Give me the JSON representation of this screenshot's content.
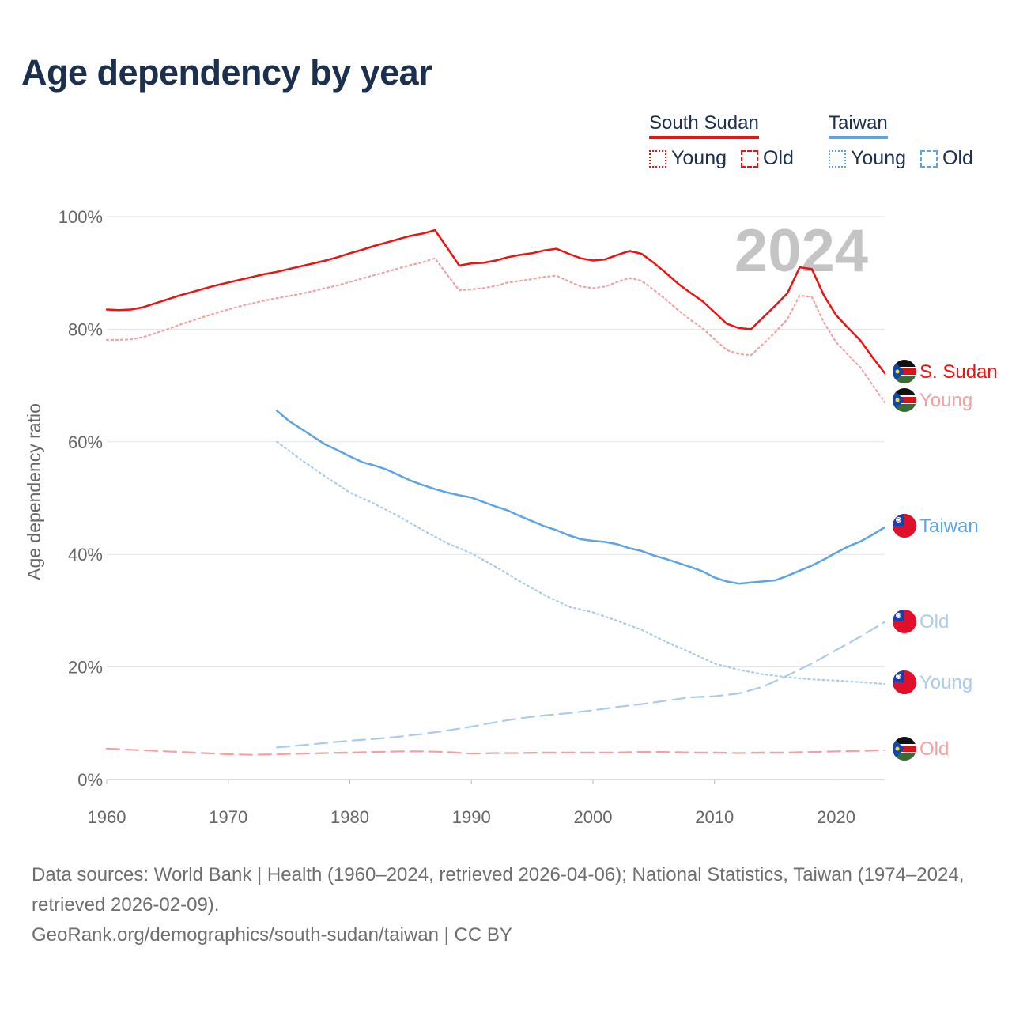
{
  "title": "Age dependency by year",
  "legend": {
    "south_sudan": {
      "label": "South Sudan",
      "young": "Young",
      "old": "Old",
      "color": "#ee1111",
      "light_color": "#f4a0a0"
    },
    "taiwan": {
      "label": "Taiwan",
      "young": "Young",
      "old": "Old",
      "color": "#5ca4e4",
      "light_color": "#a9cbee"
    }
  },
  "year_watermark": "2024",
  "footer": {
    "sources": "Data sources: World Bank | Health (1960–2024, retrieved 2026-04-06); National Statistics, Taiwan (1974–2024, retrieved 2026-02-09).",
    "attribution": "GeoRank.org/demographics/south-sudan/taiwan | CC BY"
  },
  "chart_data": {
    "type": "line",
    "title": "Age dependency by year",
    "xlabel": "",
    "ylabel": "Age dependency ratio",
    "xlim": [
      1960,
      2024
    ],
    "ylim": [
      0,
      100
    ],
    "x_ticks": [
      1960,
      1970,
      1980,
      1990,
      2000,
      2010,
      2020
    ],
    "y_ticks": [
      0,
      20,
      40,
      60,
      80,
      100
    ],
    "y_tick_labels": [
      "0%",
      "20%",
      "40%",
      "60%",
      "80%",
      "100%"
    ],
    "grid": true,
    "series": [
      {
        "name": "South Sudan",
        "end_label": "S. Sudan",
        "color": "#ee1111",
        "style": "solid",
        "flag": "south-sudan",
        "x": [
          1960,
          1961,
          1962,
          1963,
          1964,
          1965,
          1966,
          1967,
          1968,
          1969,
          1970,
          1971,
          1972,
          1973,
          1974,
          1975,
          1976,
          1977,
          1978,
          1979,
          1980,
          1981,
          1982,
          1983,
          1984,
          1985,
          1986,
          1987,
          1988,
          1989,
          1990,
          1991,
          1992,
          1993,
          1994,
          1995,
          1996,
          1997,
          1998,
          1999,
          2000,
          2001,
          2002,
          2003,
          2004,
          2005,
          2006,
          2007,
          2008,
          2009,
          2010,
          2011,
          2012,
          2013,
          2014,
          2015,
          2016,
          2017,
          2018,
          2019,
          2020,
          2021,
          2022,
          2023,
          2024
        ],
        "values": [
          83.5,
          83.4,
          83.5,
          83.9,
          84.6,
          85.3,
          86.0,
          86.6,
          87.2,
          87.8,
          88.3,
          88.8,
          89.3,
          89.8,
          90.2,
          90.7,
          91.2,
          91.7,
          92.2,
          92.8,
          93.5,
          94.1,
          94.8,
          95.4,
          96.0,
          96.6,
          97.0,
          97.6,
          94.5,
          91.3,
          91.7,
          91.8,
          92.2,
          92.8,
          93.2,
          93.5,
          94.0,
          94.3,
          93.4,
          92.6,
          92.2,
          92.4,
          93.2,
          93.9,
          93.4,
          91.8,
          90.0,
          88.1,
          86.5,
          85.0,
          83.0,
          81.0,
          80.2,
          80.0,
          82.1,
          84.2,
          86.4,
          91.0,
          90.7,
          86.0,
          82.5,
          80.2,
          78.0,
          75.0,
          72.2
        ]
      },
      {
        "name": "South Sudan Young",
        "end_label": "Young",
        "color": "#f4a0a0",
        "style": "dotted",
        "flag": "south-sudan",
        "x": [
          1960,
          1961,
          1962,
          1963,
          1964,
          1965,
          1966,
          1967,
          1968,
          1969,
          1970,
          1971,
          1972,
          1973,
          1974,
          1975,
          1976,
          1977,
          1978,
          1979,
          1980,
          1981,
          1982,
          1983,
          1984,
          1985,
          1986,
          1987,
          1988,
          1989,
          1990,
          1991,
          1992,
          1993,
          1994,
          1995,
          1996,
          1997,
          1998,
          1999,
          2000,
          2001,
          2002,
          2003,
          2004,
          2005,
          2006,
          2007,
          2008,
          2009,
          2010,
          2011,
          2012,
          2013,
          2014,
          2015,
          2016,
          2017,
          2018,
          2019,
          2020,
          2021,
          2022,
          2023,
          2024
        ],
        "values": [
          78.1,
          78.1,
          78.2,
          78.6,
          79.3,
          80.0,
          80.8,
          81.5,
          82.2,
          82.9,
          83.5,
          84.1,
          84.6,
          85.1,
          85.5,
          85.9,
          86.3,
          86.8,
          87.3,
          87.8,
          88.4,
          89.0,
          89.6,
          90.2,
          90.8,
          91.4,
          91.9,
          92.6,
          89.7,
          86.9,
          87.1,
          87.3,
          87.7,
          88.3,
          88.6,
          88.9,
          89.3,
          89.5,
          88.5,
          87.6,
          87.3,
          87.6,
          88.4,
          89.1,
          88.6,
          87.0,
          85.3,
          83.4,
          81.7,
          80.2,
          78.2,
          76.3,
          75.6,
          75.4,
          77.4,
          79.5,
          81.8,
          86.0,
          85.7,
          81.2,
          77.7,
          75.4,
          73.2,
          70.1,
          67.0
        ]
      },
      {
        "name": "South Sudan Old",
        "end_label": "Old",
        "color": "#f4a0a0",
        "style": "dashed",
        "flag": "south-sudan",
        "x": [
          1960,
          1962,
          1964,
          1966,
          1968,
          1970,
          1972,
          1974,
          1976,
          1978,
          1980,
          1982,
          1984,
          1986,
          1988,
          1990,
          1992,
          1994,
          1996,
          1998,
          2000,
          2002,
          2004,
          2006,
          2008,
          2010,
          2012,
          2014,
          2016,
          2018,
          2020,
          2022,
          2024
        ],
        "values": [
          5.5,
          5.3,
          5.1,
          4.9,
          4.7,
          4.5,
          4.4,
          4.5,
          4.6,
          4.7,
          4.8,
          4.9,
          5.0,
          5.0,
          4.9,
          4.6,
          4.7,
          4.7,
          4.8,
          4.8,
          4.8,
          4.8,
          4.9,
          4.9,
          4.8,
          4.8,
          4.7,
          4.8,
          4.8,
          4.9,
          5.0,
          5.1,
          5.2
        ]
      },
      {
        "name": "Taiwan",
        "end_label": "Taiwan",
        "color": "#5ca4e4",
        "style": "solid",
        "flag": "taiwan",
        "x": [
          1974,
          1975,
          1976,
          1977,
          1978,
          1979,
          1980,
          1981,
          1982,
          1983,
          1984,
          1985,
          1986,
          1987,
          1988,
          1989,
          1990,
          1991,
          1992,
          1993,
          1994,
          1995,
          1996,
          1997,
          1998,
          1999,
          2000,
          2001,
          2002,
          2003,
          2004,
          2005,
          2006,
          2007,
          2008,
          2009,
          2010,
          2011,
          2012,
          2013,
          2014,
          2015,
          2016,
          2017,
          2018,
          2019,
          2020,
          2021,
          2022,
          2023,
          2024
        ],
        "values": [
          65.5,
          63.7,
          62.3,
          60.9,
          59.5,
          58.5,
          57.4,
          56.4,
          55.8,
          55.1,
          54.1,
          53.1,
          52.3,
          51.6,
          51.0,
          50.5,
          50.1,
          49.3,
          48.5,
          47.8,
          46.8,
          45.9,
          45.0,
          44.3,
          43.4,
          42.7,
          42.4,
          42.2,
          41.8,
          41.1,
          40.6,
          39.8,
          39.2,
          38.5,
          37.8,
          37.0,
          35.9,
          35.2,
          34.8,
          35.0,
          35.2,
          35.4,
          36.2,
          37.1,
          38.0,
          39.1,
          40.3,
          41.4,
          42.3,
          43.5,
          44.8
        ]
      },
      {
        "name": "Taiwan Young",
        "end_label": "Young",
        "color": "#a9cbee",
        "style": "dotted",
        "flag": "taiwan",
        "x": [
          1974,
          1976,
          1978,
          1980,
          1982,
          1984,
          1986,
          1988,
          1990,
          1992,
          1994,
          1996,
          1998,
          2000,
          2002,
          2004,
          2006,
          2008,
          2010,
          2012,
          2014,
          2016,
          2018,
          2020,
          2022,
          2024
        ],
        "values": [
          60.0,
          56.8,
          53.8,
          51.0,
          49.0,
          46.8,
          44.3,
          42.0,
          40.2,
          37.8,
          35.2,
          32.8,
          30.7,
          29.7,
          28.2,
          26.6,
          24.5,
          22.6,
          20.6,
          19.5,
          18.7,
          18.2,
          17.8,
          17.6,
          17.3,
          17.0
        ]
      },
      {
        "name": "Taiwan Old",
        "end_label": "Old",
        "color": "#a9cbee",
        "style": "dashed",
        "flag": "taiwan",
        "x": [
          1974,
          1976,
          1978,
          1980,
          1982,
          1984,
          1986,
          1988,
          1990,
          1992,
          1994,
          1996,
          1998,
          2000,
          2002,
          2004,
          2006,
          2008,
          2010,
          2012,
          2014,
          2016,
          2018,
          2020,
          2022,
          2024
        ],
        "values": [
          5.7,
          6.1,
          6.5,
          6.9,
          7.2,
          7.6,
          8.1,
          8.7,
          9.4,
          10.2,
          10.9,
          11.4,
          11.8,
          12.3,
          12.9,
          13.4,
          14.0,
          14.6,
          14.8,
          15.3,
          16.5,
          18.5,
          20.6,
          23.0,
          25.4,
          28.0
        ]
      }
    ]
  }
}
